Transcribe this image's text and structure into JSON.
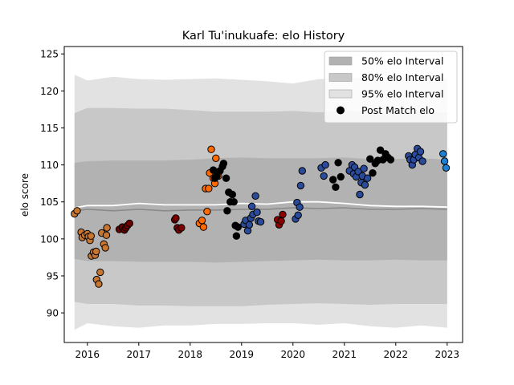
{
  "chart_data": {
    "type": "scatter",
    "title": "Karl Tu'inukuafe: elo History",
    "xlabel": "",
    "ylabel": "elo score",
    "xlim": [
      2015.55,
      2023.3
    ],
    "ylim": [
      86.0,
      126.0
    ],
    "x_ticks": [
      2016,
      2017,
      2018,
      2019,
      2020,
      2021,
      2022,
      2023
    ],
    "y_ticks": [
      90,
      95,
      100,
      105,
      110,
      115,
      120,
      125
    ],
    "legend_position": "upper right",
    "legend": [
      {
        "label": "50% elo Interval",
        "kind": "band",
        "color": "#b2b2b2"
      },
      {
        "label": "80% elo Interval",
        "kind": "band",
        "color": "#c8c8c8"
      },
      {
        "label": "95% elo Interval",
        "kind": "band",
        "color": "#e2e2e2"
      },
      {
        "label": "Post Match elo",
        "kind": "marker",
        "color": "#000000"
      }
    ],
    "intervals": {
      "x": [
        2015.75,
        2016.0,
        2016.5,
        2017.0,
        2017.5,
        2018.0,
        2018.5,
        2019.0,
        2019.5,
        2020.0,
        2020.5,
        2021.0,
        2021.5,
        2022.0,
        2022.5,
        2023.0
      ],
      "median": [
        103.8,
        104.0,
        103.8,
        104.0,
        103.8,
        103.9,
        103.9,
        104.0,
        104.0,
        104.2,
        104.1,
        104.2,
        104.0,
        104.0,
        104.1,
        104.0
      ],
      "mean": [
        104.2,
        104.5,
        104.5,
        104.8,
        104.6,
        104.6,
        104.6,
        104.8,
        104.7,
        105.0,
        105.0,
        104.8,
        104.5,
        104.4,
        104.4,
        104.3
      ],
      "p50": {
        "low": [
          97.3,
          97.0,
          97.0,
          96.9,
          96.9,
          96.9,
          96.8,
          96.9,
          97.0,
          97.1,
          97.2,
          97.1,
          97.1,
          97.2,
          97.1,
          97.1
        ],
        "high": [
          110.3,
          110.5,
          110.6,
          110.6,
          110.6,
          110.7,
          110.9,
          111.0,
          110.9,
          110.9,
          110.9,
          111.0,
          110.8,
          110.8,
          110.9,
          110.7
        ]
      },
      "p80": {
        "low": [
          91.5,
          91.2,
          91.2,
          91.0,
          91.0,
          90.9,
          90.9,
          90.9,
          91.1,
          91.2,
          91.3,
          91.2,
          91.1,
          91.2,
          91.2,
          91.2
        ],
        "high": [
          117.0,
          117.7,
          117.7,
          117.6,
          117.6,
          117.4,
          117.2,
          117.2,
          117.2,
          117.3,
          117.1,
          117.3,
          117.2,
          117.0,
          117.3,
          117.1
        ]
      },
      "p95": {
        "low": [
          87.7,
          88.6,
          88.2,
          88.0,
          88.3,
          88.3,
          88.5,
          88.5,
          88.6,
          88.6,
          88.4,
          88.6,
          88.2,
          88.0,
          88.3,
          88.0
        ],
        "high": [
          122.2,
          121.4,
          121.9,
          121.6,
          121.5,
          121.6,
          121.7,
          121.5,
          121.3,
          121.0,
          121.6,
          121.7,
          121.9,
          121.7,
          121.8,
          121.7
        ]
      }
    },
    "post_match_elo": [
      {
        "c": "#c8752f",
        "pts": [
          [
            2015.75,
            103.4
          ],
          [
            2015.8,
            103.8
          ],
          [
            2015.88,
            100.9
          ],
          [
            2015.9,
            100.2
          ],
          [
            2015.95,
            100.5
          ],
          [
            2016.0,
            100.7
          ],
          [
            2016.02,
            100.3
          ],
          [
            2016.05,
            99.8
          ],
          [
            2016.07,
            100.4
          ],
          [
            2016.08,
            97.7
          ],
          [
            2016.12,
            98.2
          ],
          [
            2016.15,
            97.8
          ],
          [
            2016.17,
            98.3
          ],
          [
            2016.18,
            94.5
          ],
          [
            2016.22,
            93.9
          ],
          [
            2016.25,
            95.5
          ],
          [
            2016.28,
            100.8
          ],
          [
            2016.32,
            99.3
          ],
          [
            2016.35,
            98.8
          ],
          [
            2016.37,
            100.5
          ],
          [
            2016.38,
            101.5
          ]
        ]
      },
      {
        "c": "#6a0000",
        "pts": [
          [
            2016.62,
            101.3
          ],
          [
            2016.68,
            101.6
          ],
          [
            2016.72,
            101.2
          ],
          [
            2016.75,
            101.5
          ],
          [
            2016.78,
            101.8
          ],
          [
            2016.82,
            102.1
          ]
        ]
      },
      {
        "c": "#7a0000",
        "pts": [
          [
            2017.7,
            102.6
          ],
          [
            2017.72,
            102.8
          ],
          [
            2017.75,
            101.5
          ],
          [
            2017.78,
            101.2
          ],
          [
            2017.83,
            101.5
          ]
        ]
      },
      {
        "c": "#ff6a00",
        "pts": [
          [
            2018.18,
            102.1
          ],
          [
            2018.23,
            102.5
          ],
          [
            2018.26,
            101.6
          ],
          [
            2018.3,
            106.8
          ],
          [
            2018.33,
            103.7
          ],
          [
            2018.36,
            106.8
          ],
          [
            2018.38,
            108.9
          ],
          [
            2018.41,
            112.1
          ],
          [
            2018.45,
            108.2
          ],
          [
            2018.48,
            107.5
          ],
          [
            2018.5,
            110.9
          ],
          [
            2018.55,
            108.5
          ]
        ]
      },
      {
        "c": "#000000",
        "pts": [
          [
            2018.45,
            109.3
          ],
          [
            2018.48,
            108.2
          ],
          [
            2018.52,
            108.5
          ],
          [
            2018.58,
            109.2
          ],
          [
            2018.63,
            109.8
          ],
          [
            2018.65,
            110.2
          ],
          [
            2018.7,
            108.2
          ],
          [
            2018.72,
            103.8
          ],
          [
            2018.75,
            106.3
          ],
          [
            2018.78,
            105.0
          ],
          [
            2018.82,
            106.0
          ],
          [
            2018.85,
            105.0
          ],
          [
            2018.88,
            101.8
          ],
          [
            2018.9,
            100.4
          ],
          [
            2018.93,
            101.6
          ]
        ]
      },
      {
        "c": "#2a4a9a",
        "pts": [
          [
            2019.05,
            102.0
          ],
          [
            2019.08,
            102.5
          ],
          [
            2019.12,
            101.1
          ],
          [
            2019.15,
            101.9
          ],
          [
            2019.18,
            102.8
          ],
          [
            2019.2,
            104.4
          ],
          [
            2019.22,
            103.3
          ],
          [
            2019.27,
            105.8
          ],
          [
            2019.3,
            103.6
          ],
          [
            2019.33,
            102.4
          ],
          [
            2019.37,
            102.3
          ]
        ]
      },
      {
        "c": "#8b0000",
        "pts": [
          [
            2019.7,
            102.6
          ],
          [
            2019.73,
            101.9
          ],
          [
            2019.77,
            102.4
          ],
          [
            2019.8,
            103.3
          ]
        ]
      },
      {
        "c": "#2a4a9a",
        "pts": [
          [
            2020.05,
            102.7
          ],
          [
            2020.08,
            104.9
          ],
          [
            2020.1,
            103.2
          ],
          [
            2020.13,
            104.3
          ],
          [
            2020.15,
            107.2
          ],
          [
            2020.18,
            109.2
          ],
          [
            2020.55,
            109.6
          ],
          [
            2020.6,
            108.5
          ],
          [
            2020.63,
            110.0
          ]
        ]
      },
      {
        "c": "#000000",
        "pts": [
          [
            2020.78,
            108.0
          ],
          [
            2020.83,
            107.0
          ],
          [
            2020.88,
            110.3
          ],
          [
            2020.93,
            108.4
          ]
        ]
      },
      {
        "c": "#2a4a9a",
        "pts": [
          [
            2021.1,
            109.2
          ],
          [
            2021.15,
            110.0
          ],
          [
            2021.18,
            108.8
          ],
          [
            2021.2,
            109.7
          ],
          [
            2021.23,
            108.4
          ],
          [
            2021.27,
            109.1
          ],
          [
            2021.3,
            106.0
          ],
          [
            2021.33,
            107.6
          ],
          [
            2021.35,
            108.5
          ],
          [
            2021.38,
            109.5
          ],
          [
            2021.4,
            107.3
          ],
          [
            2021.45,
            108.2
          ]
        ]
      },
      {
        "c": "#000000",
        "pts": [
          [
            2021.5,
            110.8
          ],
          [
            2021.55,
            108.9
          ],
          [
            2021.6,
            110.2
          ],
          [
            2021.65,
            110.6
          ],
          [
            2021.7,
            112.0
          ],
          [
            2021.75,
            110.7
          ],
          [
            2021.8,
            111.5
          ],
          [
            2021.85,
            111.0
          ],
          [
            2021.9,
            110.7
          ]
        ]
      },
      {
        "c": "#2a4a9a",
        "pts": [
          [
            2022.25,
            111.2
          ],
          [
            2022.28,
            110.7
          ],
          [
            2022.32,
            110.0
          ],
          [
            2022.35,
            110.7
          ],
          [
            2022.38,
            111.4
          ],
          [
            2022.42,
            112.2
          ],
          [
            2022.45,
            111.0
          ],
          [
            2022.48,
            111.8
          ],
          [
            2022.52,
            110.5
          ]
        ]
      },
      {
        "c": "#1f7fd0",
        "pts": [
          [
            2022.92,
            111.5
          ],
          [
            2022.95,
            110.5
          ],
          [
            2022.98,
            109.6
          ]
        ]
      }
    ]
  }
}
